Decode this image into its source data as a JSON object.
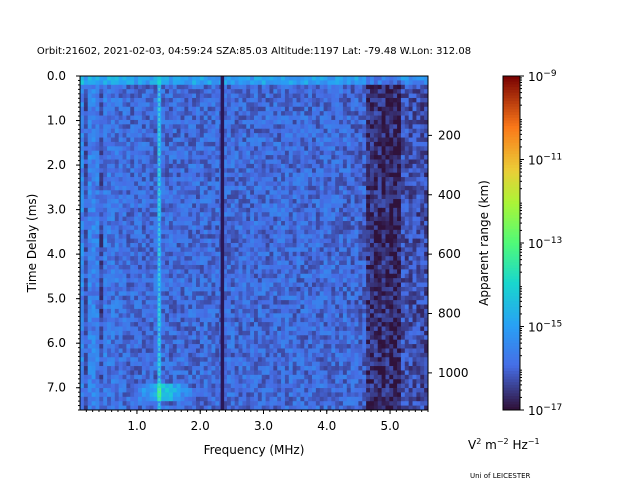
{
  "chart_data": {
    "type": "heatmap",
    "title": "Orbit:21602, 2021-02-03, 04:59:24 SZA:85.03 Altitude:1197 Lat: -79.48 W.Lon: 312.08",
    "xlabel": "Frequency (MHz)",
    "ylabel": "Time Delay (ms)",
    "right_ylabel": "Apparent range (km)",
    "x_range": [
      0.1,
      5.6
    ],
    "y_range": [
      7.5,
      0.0
    ],
    "x_ticks": [
      "1.0",
      "2.0",
      "3.0",
      "4.0",
      "5.0"
    ],
    "y_ticks": [
      "0.0",
      "1.0",
      "2.0",
      "3.0",
      "4.0",
      "5.0",
      "6.0",
      "7.0"
    ],
    "right_ticks": [
      "200",
      "400",
      "600",
      "800",
      "1000"
    ],
    "right_tick_values_km": [
      200,
      400,
      600,
      800,
      1000
    ],
    "km_per_ms": 150,
    "colorbar": {
      "colormap": "turbo",
      "scale": "log",
      "ticks": [
        {
          "base": "10",
          "exp": "−9"
        },
        {
          "base": "10",
          "exp": "−11"
        },
        {
          "base": "10",
          "exp": "−13"
        },
        {
          "base": "10",
          "exp": "−15"
        },
        {
          "base": "10",
          "exp": "−17"
        }
      ],
      "log_min": -17,
      "log_max": -9,
      "units_prefix": "V",
      "units_sup1": "2",
      "units_mid": " m",
      "units_sup2": "−2",
      "units_mid2": " Hz",
      "units_sup3": "−1"
    },
    "features": [
      {
        "name": "vertical line",
        "freq_mhz": 2.35
      },
      {
        "name": "vertical line",
        "freq_mhz": 1.35
      },
      {
        "name": "dark band",
        "freq_mhz_range": [
          4.6,
          5.2
        ]
      },
      {
        "name": "bright echo",
        "freq_mhz_range": [
          0.9,
          1.9
        ],
        "delay_ms": 7.1
      }
    ]
  },
  "footer": "Uni of LEICESTER"
}
